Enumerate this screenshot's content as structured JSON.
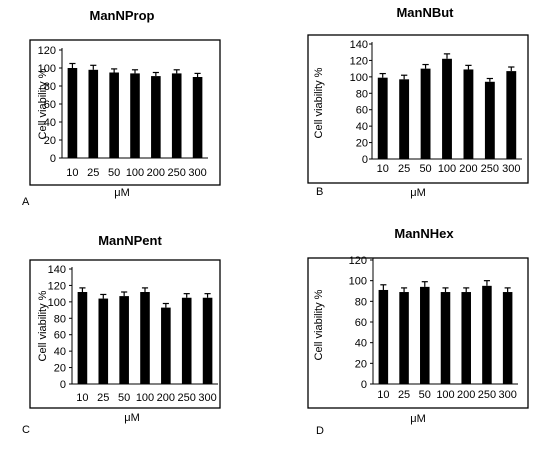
{
  "chart_data": [
    {
      "panel": "A",
      "type": "bar",
      "title": "ManNProp",
      "xlabel": "μM",
      "ylabel": "Cell viability  %",
      "ylim": [
        0,
        120
      ],
      "yticks": [
        0,
        20,
        40,
        60,
        80,
        100,
        120
      ],
      "categories": [
        "10",
        "25",
        "50",
        "100",
        "200",
        "250",
        "300"
      ],
      "values": [
        100,
        98,
        95,
        94,
        91,
        94,
        90
      ],
      "errors": [
        5,
        5,
        4,
        4,
        4,
        4,
        4
      ],
      "error_bars": true,
      "grid": false,
      "bar_color": "#000000"
    },
    {
      "panel": "B",
      "type": "bar",
      "title": "ManNBut",
      "xlabel": "μM",
      "ylabel": "Cell viability %",
      "ylim": [
        0,
        140
      ],
      "yticks": [
        0,
        20,
        40,
        60,
        80,
        100,
        120,
        140
      ],
      "categories": [
        "10",
        "25",
        "50",
        "100",
        "200",
        "250",
        "300"
      ],
      "values": [
        99,
        97,
        110,
        122,
        109,
        94,
        107
      ],
      "errors": [
        5,
        5,
        5,
        6,
        5,
        4,
        5
      ],
      "error_bars": true,
      "grid": false,
      "bar_color": "#000000"
    },
    {
      "panel": "C",
      "type": "bar",
      "title": "ManNPent",
      "xlabel": "μM",
      "ylabel": "Cell viability  %",
      "ylim": [
        0,
        140
      ],
      "yticks": [
        0,
        20,
        40,
        60,
        80,
        100,
        120,
        140
      ],
      "categories": [
        "10",
        "25",
        "50",
        "100",
        "200",
        "250",
        "300"
      ],
      "values": [
        112,
        104,
        107,
        112,
        93,
        105,
        105
      ],
      "errors": [
        5,
        5,
        5,
        5,
        5,
        5,
        5
      ],
      "error_bars": true,
      "grid": false,
      "bar_color": "#000000"
    },
    {
      "panel": "D",
      "type": "bar",
      "title": "ManNHex",
      "xlabel": "μM",
      "ylabel": "Cell viability %",
      "ylim": [
        0,
        120
      ],
      "yticks": [
        0,
        20,
        40,
        60,
        80,
        100,
        120
      ],
      "categories": [
        "10",
        "25",
        "50",
        "100",
        "200",
        "250",
        "300"
      ],
      "values": [
        91,
        89,
        94,
        89,
        89,
        95,
        89
      ],
      "errors": [
        5,
        4,
        5,
        4,
        4,
        5,
        4
      ],
      "error_bars": true,
      "grid": false,
      "bar_color": "#000000"
    }
  ]
}
